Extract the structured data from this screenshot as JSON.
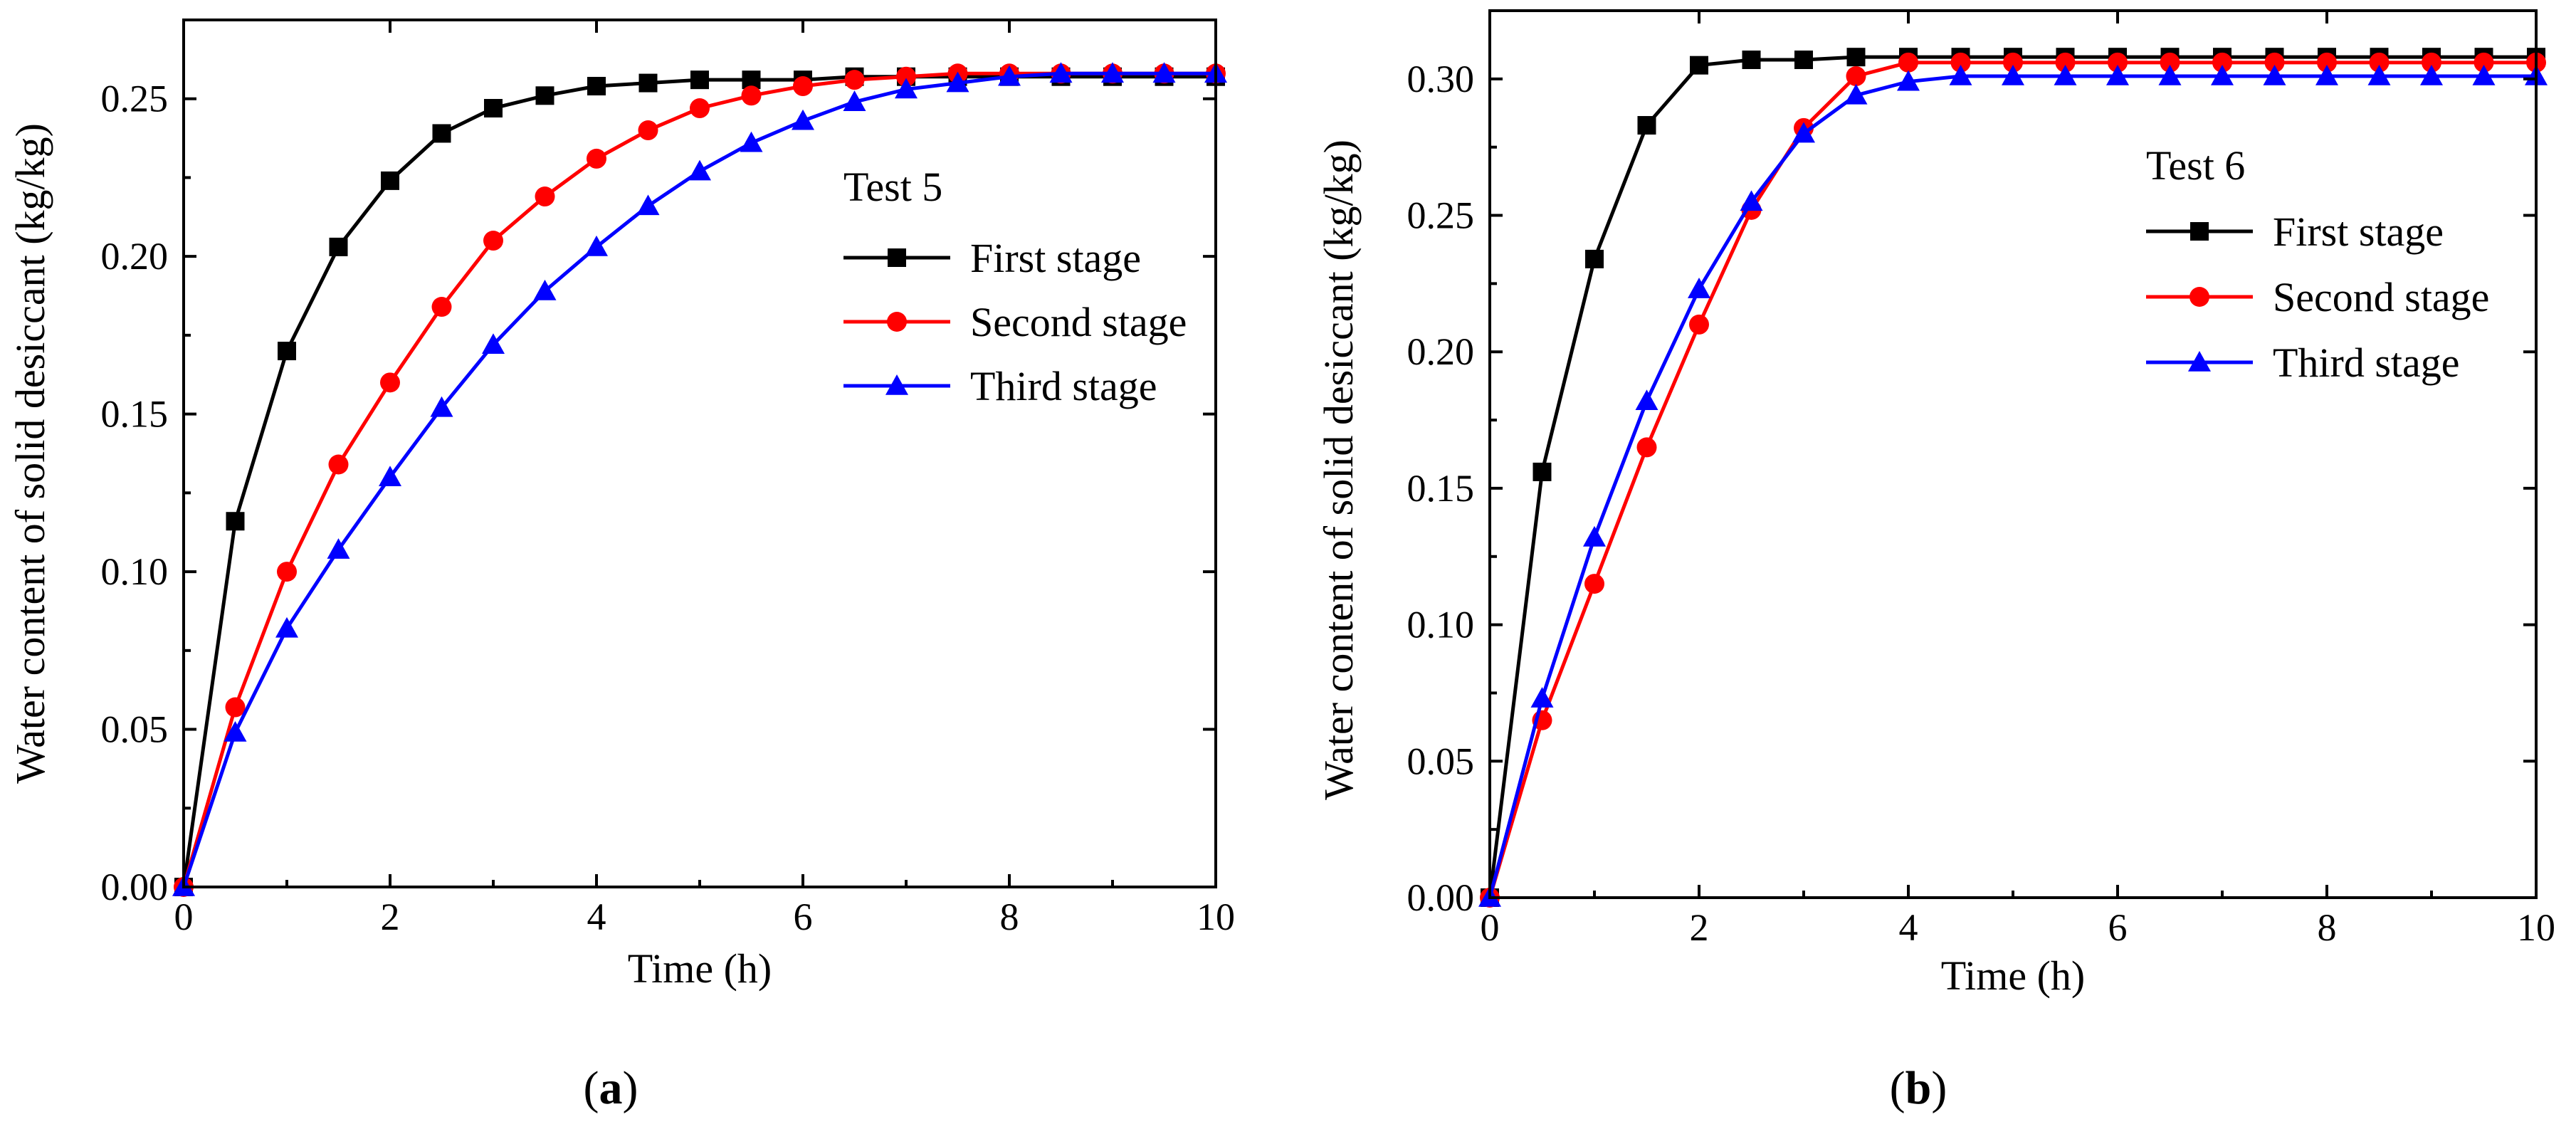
{
  "chart_data": [
    {
      "type": "line",
      "panel": "a",
      "caption_letter": "a",
      "title": "Test 5",
      "xlabel": "Time (h)",
      "ylabel": "Water content of solid desiccant (kg/kg)",
      "xlim": [
        0,
        10
      ],
      "ylim": [
        0,
        0.275
      ],
      "xticks": [
        0,
        2,
        4,
        6,
        8,
        10
      ],
      "yticks": [
        0.0,
        0.05,
        0.1,
        0.15,
        0.2,
        0.25
      ],
      "xtick_labels": [
        "0",
        "2",
        "4",
        "6",
        "8",
        "10"
      ],
      "ytick_labels": [
        "0.00",
        "0.05",
        "0.10",
        "0.15",
        "0.20",
        "0.25"
      ],
      "legend_position": "right",
      "x": [
        0,
        0.5,
        1,
        1.5,
        2,
        2.5,
        3,
        3.5,
        4,
        4.5,
        5,
        5.5,
        6,
        6.5,
        7,
        7.5,
        8,
        8.5,
        9,
        9.5,
        10
      ],
      "series": [
        {
          "name": "First stage",
          "color": "#000000",
          "marker": "square",
          "values": [
            0.0,
            0.116,
            0.17,
            0.203,
            0.224,
            0.239,
            0.247,
            0.251,
            0.254,
            0.255,
            0.256,
            0.256,
            0.256,
            0.257,
            0.257,
            0.257,
            0.257,
            0.257,
            0.257,
            0.257,
            0.257
          ]
        },
        {
          "name": "Second stage",
          "color": "#ff0000",
          "marker": "circle",
          "values": [
            0.0,
            0.057,
            0.1,
            0.134,
            0.16,
            0.184,
            0.205,
            0.219,
            0.231,
            0.24,
            0.247,
            0.251,
            0.254,
            0.256,
            0.257,
            0.258,
            0.258,
            0.258,
            0.258,
            0.258,
            0.258
          ]
        },
        {
          "name": "Third stage",
          "color": "#0000ff",
          "marker": "triangle",
          "values": [
            0.0,
            0.049,
            0.082,
            0.107,
            0.13,
            0.152,
            0.172,
            0.189,
            0.203,
            0.216,
            0.227,
            0.236,
            0.243,
            0.249,
            0.253,
            0.255,
            0.257,
            0.258,
            0.258,
            0.258,
            0.258
          ]
        }
      ]
    },
    {
      "type": "line",
      "panel": "b",
      "caption_letter": "b",
      "title": "Test 6",
      "xlabel": "Time (h)",
      "ylabel": "Water content of solid desiccant (kg/kg)",
      "xlim": [
        0,
        10
      ],
      "ylim": [
        0,
        0.325
      ],
      "xticks": [
        0,
        2,
        4,
        6,
        8,
        10
      ],
      "yticks": [
        0.0,
        0.05,
        0.1,
        0.15,
        0.2,
        0.25,
        0.3
      ],
      "xtick_labels": [
        "0",
        "2",
        "4",
        "6",
        "8",
        "10"
      ],
      "ytick_labels": [
        "0.00",
        "0.05",
        "0.10",
        "0.15",
        "0.20",
        "0.25",
        "0.30"
      ],
      "legend_position": "top-right",
      "x": [
        0,
        0.5,
        1,
        1.5,
        2,
        2.5,
        3,
        3.5,
        4,
        4.5,
        5,
        5.5,
        6,
        6.5,
        7,
        7.5,
        8,
        8.5,
        9,
        9.5,
        10
      ],
      "series": [
        {
          "name": "First stage",
          "color": "#000000",
          "marker": "square",
          "values": [
            0.0,
            0.156,
            0.234,
            0.283,
            0.305,
            0.307,
            0.307,
            0.308,
            0.308,
            0.308,
            0.308,
            0.308,
            0.308,
            0.308,
            0.308,
            0.308,
            0.308,
            0.308,
            0.308,
            0.308,
            0.308
          ]
        },
        {
          "name": "Second stage",
          "color": "#ff0000",
          "marker": "circle",
          "values": [
            0.0,
            0.065,
            0.115,
            0.165,
            0.21,
            0.252,
            0.282,
            0.301,
            0.306,
            0.306,
            0.306,
            0.306,
            0.306,
            0.306,
            0.306,
            0.306,
            0.306,
            0.306,
            0.306,
            0.306,
            0.306
          ]
        },
        {
          "name": "Third stage",
          "color": "#0000ff",
          "marker": "triangle",
          "values": [
            0.0,
            0.073,
            0.132,
            0.182,
            0.223,
            0.255,
            0.28,
            0.294,
            0.299,
            0.301,
            0.301,
            0.301,
            0.301,
            0.301,
            0.301,
            0.301,
            0.301,
            0.301,
            0.301,
            0.301,
            0.301
          ]
        }
      ]
    }
  ]
}
